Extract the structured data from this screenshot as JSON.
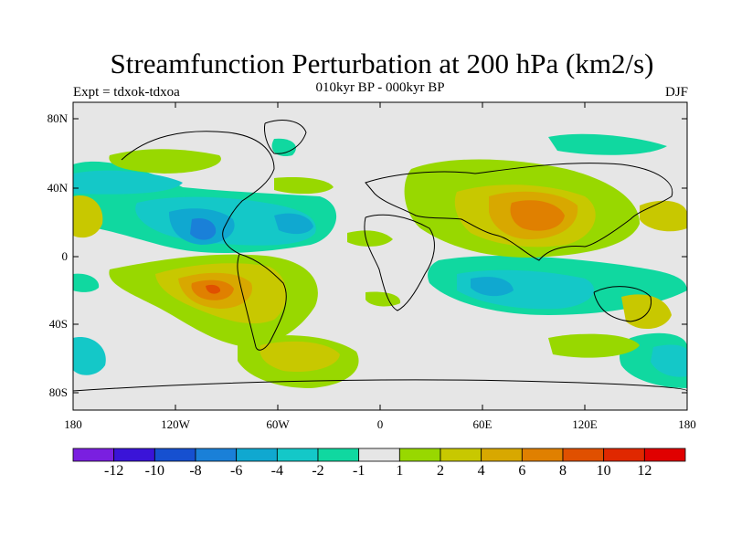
{
  "title": "Streamfunction Perturbation at 200 hPa (km2/s)",
  "subtitle": "010kyr BP - 000kyr BP",
  "left_string": "Expt = tdxok-tdxoa",
  "right_string": "DJF",
  "lat_ticks": [
    "80N",
    "40N",
    "0",
    "40S",
    "80S"
  ],
  "lon_ticks": [
    "180",
    "120W",
    "60W",
    "0",
    "60E",
    "120E",
    "180"
  ],
  "colorbar": {
    "labels": [
      "-12",
      "-10",
      "-8",
      "-6",
      "-4",
      "-2",
      "-1",
      "1",
      "2",
      "4",
      "6",
      "8",
      "10",
      "12"
    ],
    "colors": [
      "#7a1fe0",
      "#3a14d8",
      "#1650d0",
      "#1a80d8",
      "#10a8d0",
      "#14c8c8",
      "#10d8a0",
      "#e6e6e6",
      "#98d800",
      "#c8c800",
      "#d8a800",
      "#e08000",
      "#e05000",
      "#e02800",
      "#e00000"
    ]
  },
  "colors": {
    "land_outline": "#000000",
    "neutral": "#e6e6e6"
  }
}
